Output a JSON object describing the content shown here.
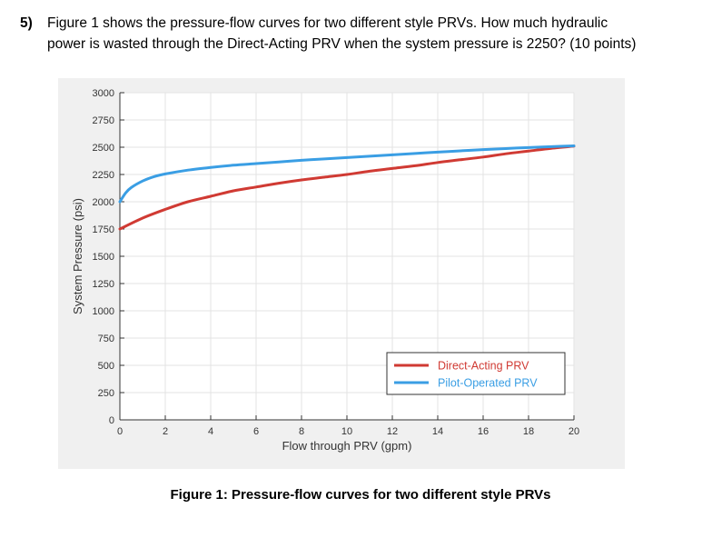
{
  "question": {
    "number": "5)",
    "line1": "Figure 1 shows the pressure-flow curves for two different style PRVs.  How much hydraulic",
    "line2": "power is wasted through the Direct-Acting PRV when the system pressure is 2250? (10 points)"
  },
  "caption": "Figure 1: Pressure-flow curves for two different style PRVs",
  "chart_data": {
    "type": "line",
    "title": "",
    "xlabel": "Flow through PRV (gpm)",
    "ylabel": "System Pressure (psi)",
    "xlim": [
      0,
      20
    ],
    "ylim": [
      0,
      3000
    ],
    "xticks": [
      0,
      2,
      4,
      6,
      8,
      10,
      12,
      14,
      16,
      18,
      20
    ],
    "yticks": [
      0,
      250,
      500,
      750,
      1000,
      1250,
      1500,
      1750,
      2000,
      2250,
      2500,
      2750,
      3000
    ],
    "grid": true,
    "legend_position": "bottom-right",
    "series": [
      {
        "name": "Direct-Acting PRV",
        "color": "#d03a33",
        "x": [
          0,
          1,
          2,
          3,
          4,
          5,
          6,
          7,
          8,
          9,
          10,
          11,
          12,
          13,
          14,
          15,
          16,
          17,
          18,
          19,
          20
        ],
        "y": [
          1750,
          1850,
          1930,
          2000,
          2050,
          2100,
          2135,
          2170,
          2200,
          2225,
          2250,
          2280,
          2305,
          2330,
          2360,
          2385,
          2410,
          2440,
          2465,
          2490,
          2510
        ]
      },
      {
        "name": "Pilot-Operated PRV",
        "color": "#3a9ee4",
        "x": [
          0,
          0.25,
          0.5,
          1,
          1.5,
          2,
          3,
          4,
          5,
          6,
          7,
          8,
          9,
          10,
          11,
          12,
          13,
          14,
          15,
          16,
          17,
          18,
          19,
          20
        ],
        "y": [
          2000,
          2080,
          2130,
          2190,
          2230,
          2255,
          2290,
          2315,
          2335,
          2350,
          2365,
          2380,
          2393,
          2405,
          2418,
          2430,
          2443,
          2455,
          2467,
          2478,
          2488,
          2497,
          2505,
          2513
        ]
      }
    ]
  }
}
